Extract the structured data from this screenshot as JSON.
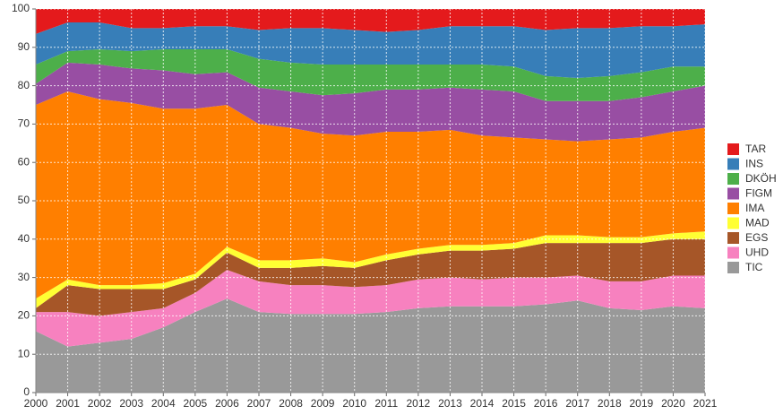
{
  "chart_data": {
    "type": "stacked-area",
    "categories": [
      "2000",
      "2001",
      "2002",
      "2003",
      "2004",
      "2005",
      "2006",
      "2007",
      "2008",
      "2009",
      "2010",
      "2011",
      "2012",
      "2013",
      "2014",
      "2015",
      "2016",
      "2017",
      "2018",
      "2019",
      "2020",
      "2021"
    ],
    "ylim": [
      0,
      100
    ],
    "yticks": [
      0,
      10,
      20,
      30,
      40,
      50,
      60,
      70,
      80,
      90,
      100
    ],
    "grid": true,
    "series": [
      {
        "name": "TIC",
        "color": "#999999",
        "values": [
          16,
          12,
          13,
          14,
          17,
          21,
          24.5,
          21,
          20.5,
          20.5,
          20.5,
          21,
          22,
          22.5,
          22.5,
          22.5,
          23,
          24,
          22,
          21.5,
          22.5,
          22
        ]
      },
      {
        "name": "UHD",
        "color": "#f781bf",
        "values": [
          5,
          9,
          7,
          7,
          5,
          5,
          7.5,
          8,
          7.5,
          7.5,
          7,
          7,
          7.5,
          7.5,
          7,
          7.5,
          7,
          6.5,
          7,
          7.5,
          8,
          8.5
        ]
      },
      {
        "name": "EGS",
        "color": "#a65628",
        "values": [
          1,
          7,
          7,
          6,
          5,
          3.5,
          4.5,
          3.5,
          4.5,
          5,
          5,
          6.5,
          6.5,
          7,
          7.5,
          7.5,
          9,
          8.5,
          10,
          10,
          9.5,
          9.5
        ]
      },
      {
        "name": "MAD",
        "color": "#ffff33",
        "values": [
          2.5,
          1.5,
          1,
          1,
          1.5,
          1.5,
          1.5,
          2,
          2,
          2,
          1.5,
          1.5,
          1.5,
          1.5,
          1.5,
          1.5,
          2,
          2,
          1.5,
          1.5,
          1.5,
          2
        ]
      },
      {
        "name": "IMA",
        "color": "#ff7f00",
        "values": [
          50.5,
          49,
          48.5,
          47.5,
          45.5,
          43,
          37,
          35.5,
          34.5,
          32.5,
          33,
          32,
          30.5,
          30,
          28.5,
          27.5,
          25,
          24.5,
          25.5,
          26,
          26.5,
          27
        ]
      },
      {
        "name": "FIGM",
        "color": "#984ea3",
        "values": [
          5.5,
          7.5,
          9,
          9,
          10,
          9,
          8.5,
          9.5,
          9.5,
          10,
          11,
          11,
          11,
          11,
          12,
          12,
          10,
          10.5,
          10,
          10.5,
          10.5,
          11
        ]
      },
      {
        "name": "DKÖH",
        "color": "#4daf4a",
        "values": [
          5,
          3,
          4,
          4.5,
          5.5,
          6.5,
          6,
          7.5,
          7.5,
          8,
          7.5,
          6.5,
          6.5,
          6,
          6.5,
          6.5,
          6.5,
          6,
          6.5,
          6.5,
          6.5,
          5
        ]
      },
      {
        "name": "INS",
        "color": "#377eb8",
        "values": [
          8,
          7.5,
          7,
          6,
          5.5,
          6,
          6,
          7.5,
          9,
          9.5,
          9,
          8.5,
          9,
          10,
          10,
          10.5,
          12,
          13,
          12.5,
          12,
          10.5,
          11
        ]
      },
      {
        "name": "TAR",
        "color": "#e41a1c",
        "values": [
          6.5,
          3.5,
          3.5,
          5,
          5,
          4.5,
          4.5,
          5.5,
          5,
          5,
          5.5,
          6,
          5.5,
          4.5,
          4.5,
          4.5,
          5.5,
          5,
          5,
          4.5,
          4.5,
          4
        ]
      }
    ]
  }
}
